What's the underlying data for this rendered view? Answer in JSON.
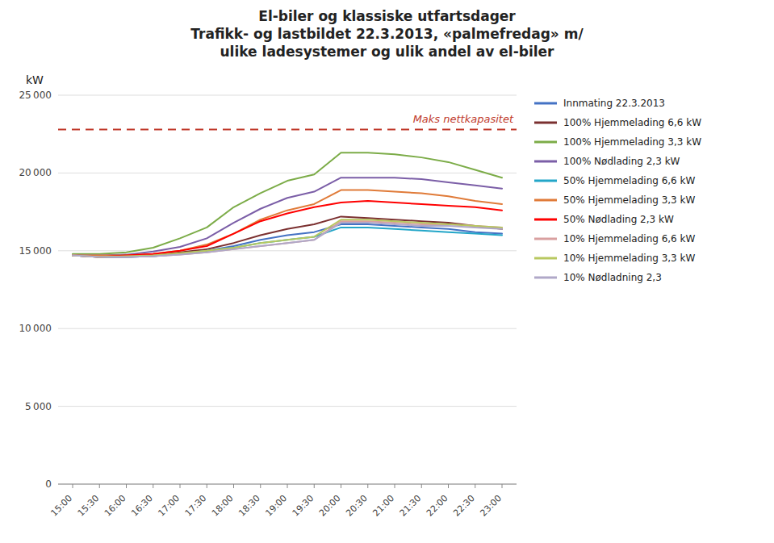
{
  "chart_data": {
    "type": "line",
    "title": [
      "El-biler og klassiske utfartsdager",
      "Trafikk- og lastbildet 22.3.2013, «palmefredag» m/",
      "ulike ladesystemer og ulik andel av el-biler"
    ],
    "ylabel": "kW",
    "categories": [
      "15:00",
      "15:30",
      "16:00",
      "16:30",
      "17:00",
      "17:30",
      "18:00",
      "18:30",
      "19:00",
      "19:30",
      "20:00",
      "20:30",
      "21:00",
      "21:30",
      "22:00",
      "22:30",
      "23:00"
    ],
    "series": [
      {
        "name": "Innmating 22.3.2013",
        "color": "#4472c4",
        "values": [
          14700,
          14600,
          14600,
          14650,
          14800,
          15000,
          15300,
          15700,
          16000,
          16200,
          16700,
          16700,
          16600,
          16500,
          16400,
          16200,
          16100
        ]
      },
      {
        "name": "100% Hjemmelading 6,6 kW",
        "color": "#7b3030",
        "values": [
          14700,
          14620,
          14640,
          14700,
          14900,
          15100,
          15500,
          16000,
          16400,
          16700,
          17200,
          17100,
          17000,
          16900,
          16800,
          16600,
          16400
        ]
      },
      {
        "name": "100% Hjemmelading 3,3 kW",
        "color": "#7cac48",
        "values": [
          14800,
          14800,
          14900,
          15200,
          15800,
          16500,
          17800,
          18700,
          19500,
          19900,
          21300,
          21300,
          21200,
          21000,
          20700,
          20200,
          19700
        ]
      },
      {
        "name": "100% Nødlading 2,3 kW",
        "color": "#7b5ea7",
        "values": [
          14700,
          14700,
          14750,
          14950,
          15250,
          15800,
          16800,
          17700,
          18400,
          18800,
          19700,
          19700,
          19700,
          19600,
          19400,
          19200,
          19000
        ]
      },
      {
        "name": "50% Hjemmelading 6,6 kW",
        "color": "#23a6c8",
        "values": [
          14700,
          14600,
          14600,
          14650,
          14800,
          15000,
          15200,
          15500,
          15700,
          15900,
          16500,
          16500,
          16400,
          16300,
          16200,
          16100,
          16000
        ]
      },
      {
        "name": "50% Hjemmelading 3,3 kW",
        "color": "#e07b39",
        "values": [
          14700,
          14700,
          14700,
          14800,
          15000,
          15400,
          16100,
          17000,
          17600,
          18000,
          18900,
          18900,
          18800,
          18700,
          18500,
          18200,
          18000
        ]
      },
      {
        "name": "50% Nødlading 2,3 kW",
        "color": "#ff0000",
        "values": [
          14700,
          14600,
          14700,
          14800,
          15000,
          15300,
          16100,
          16900,
          17400,
          17800,
          18100,
          18200,
          18100,
          18000,
          17900,
          17800,
          17600
        ]
      },
      {
        "name": "10% Hjemmelading 6,6 kW",
        "color": "#d9a0a0",
        "values": [
          14700,
          14600,
          14600,
          14650,
          14750,
          14900,
          15100,
          15300,
          15500,
          15700,
          16900,
          16900,
          16800,
          16700,
          16700,
          16600,
          16500
        ]
      },
      {
        "name": "10% Hjemmelading 3,3 kW",
        "color": "#b8c860",
        "values": [
          14700,
          14600,
          14650,
          14700,
          14850,
          15000,
          15200,
          15500,
          15700,
          15900,
          17000,
          17000,
          16900,
          16800,
          16700,
          16600,
          16500
        ]
      },
      {
        "name": "10% Nødladning 2,3",
        "color": "#b0a8c8",
        "values": [
          14700,
          14600,
          14600,
          14650,
          14750,
          14900,
          15100,
          15300,
          15500,
          15700,
          16800,
          16800,
          16700,
          16600,
          16600,
          16500,
          16400
        ]
      }
    ],
    "annotations": [
      {
        "text": "Maks nettkapasitet",
        "value": 22800,
        "color": "#c0392b"
      }
    ],
    "ylim": [
      0,
      25000
    ],
    "yticks": [
      0,
      {
        "value": 5000,
        "label": "5 000"
      },
      {
        "value": 10000,
        "label": "10 000"
      },
      {
        "value": 15000,
        "label": "15 000"
      },
      {
        "value": 20000,
        "label": "20 000"
      },
      {
        "value": 25000,
        "label": "25 000"
      }
    ],
    "grid": true,
    "legend": "right"
  }
}
